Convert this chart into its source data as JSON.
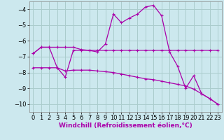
{
  "background_color": "#cce8ee",
  "grid_color": "#aacccc",
  "line_color": "#aa00aa",
  "xlabel": "Windchill (Refroidissement éolien,°C)",
  "xlabel_fontsize": 6.5,
  "tick_fontsize": 6,
  "xlim": [
    -0.5,
    23.5
  ],
  "ylim": [
    -10.5,
    -3.5
  ],
  "yticks": [
    -10,
    -9,
    -8,
    -7,
    -6,
    -5,
    -4
  ],
  "xticks": [
    0,
    1,
    2,
    3,
    4,
    5,
    6,
    7,
    8,
    9,
    10,
    11,
    12,
    13,
    14,
    15,
    16,
    17,
    18,
    19,
    20,
    21,
    22,
    23
  ],
  "series1_x": [
    0,
    1,
    2,
    3,
    4,
    5,
    6,
    7,
    8,
    9,
    10,
    11,
    12,
    13,
    14,
    15,
    16,
    17,
    18,
    19,
    20,
    21,
    22,
    23
  ],
  "series1_y": [
    -6.8,
    -6.4,
    -6.4,
    -6.4,
    -6.4,
    -6.4,
    -6.55,
    -6.6,
    -6.6,
    -6.6,
    -6.6,
    -6.6,
    -6.6,
    -6.6,
    -6.6,
    -6.6,
    -6.6,
    -6.6,
    -6.6,
    -6.6,
    -6.6,
    -6.6,
    -6.6,
    -6.6
  ],
  "series2_x": [
    0,
    1,
    2,
    3,
    4,
    5,
    6,
    7,
    8,
    9,
    10,
    11,
    12,
    13,
    14,
    15,
    16,
    17,
    18,
    19,
    20,
    21,
    22,
    23
  ],
  "series2_y": [
    -7.7,
    -7.7,
    -7.7,
    -7.7,
    -7.9,
    -7.85,
    -7.85,
    -7.85,
    -7.9,
    -7.95,
    -8.0,
    -8.1,
    -8.2,
    -8.3,
    -8.4,
    -8.45,
    -8.55,
    -8.65,
    -8.75,
    -8.85,
    -9.05,
    -9.35,
    -9.65,
    -10.0
  ],
  "series3_x": [
    0,
    1,
    2,
    3,
    4,
    5,
    6,
    7,
    8,
    9,
    10,
    11,
    12,
    13,
    14,
    15,
    16,
    17,
    18,
    19,
    20,
    21,
    22,
    23
  ],
  "series3_y": [
    -6.8,
    -6.4,
    -6.4,
    -7.7,
    -8.3,
    -6.6,
    -6.6,
    -6.6,
    -6.7,
    -6.2,
    -4.3,
    -4.85,
    -4.55,
    -4.3,
    -3.85,
    -3.75,
    -4.4,
    -6.7,
    -7.6,
    -9.0,
    -8.2,
    -9.35,
    -9.65,
    -10.0
  ]
}
